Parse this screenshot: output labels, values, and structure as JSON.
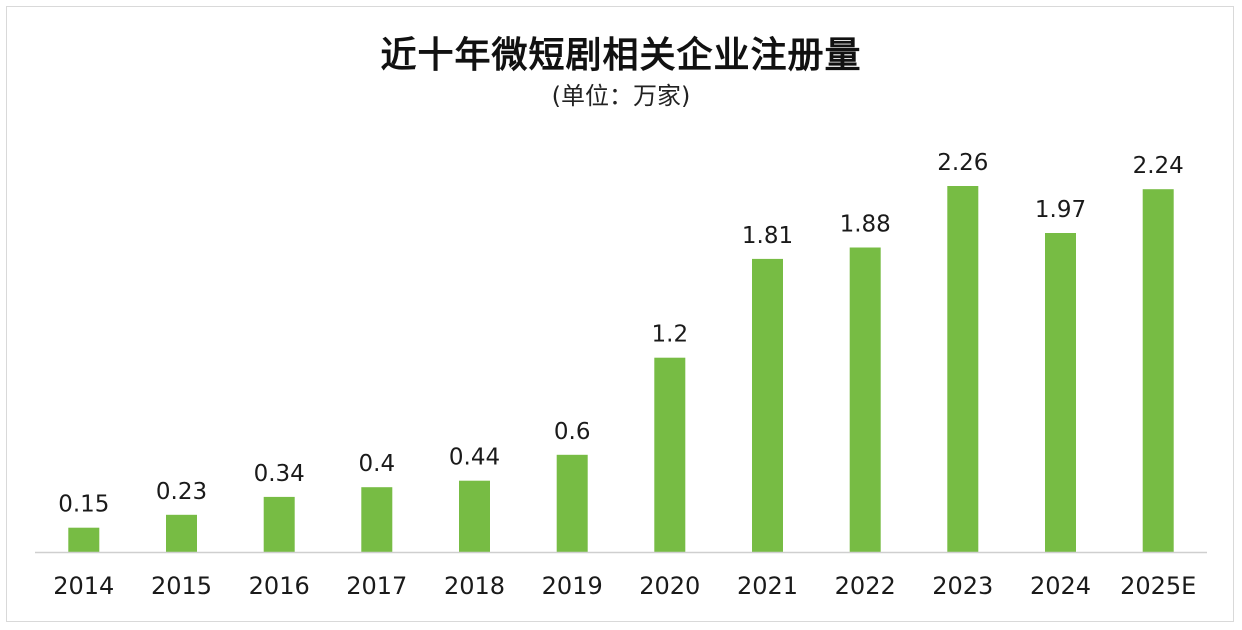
{
  "chart_data": {
    "type": "bar",
    "title": "近十年微短剧相关企业注册量",
    "subtitle": "(单位：万家)",
    "categories": [
      "2014",
      "2015",
      "2016",
      "2017",
      "2018",
      "2019",
      "2020",
      "2021",
      "2022",
      "2023",
      "2024",
      "2025E"
    ],
    "values": [
      0.15,
      0.23,
      0.34,
      0.4,
      0.44,
      0.6,
      1.2,
      1.81,
      1.88,
      2.26,
      1.97,
      2.24
    ],
    "value_labels": [
      "0.15",
      "0.23",
      "0.34",
      "0.4",
      "0.44",
      "0.6",
      "1.2",
      "1.81",
      "1.88",
      "2.26",
      "1.97",
      "2.24"
    ],
    "ylim": [
      0,
      2.26
    ],
    "grid": false,
    "legend": "none",
    "bar_color": "#77bc44"
  }
}
